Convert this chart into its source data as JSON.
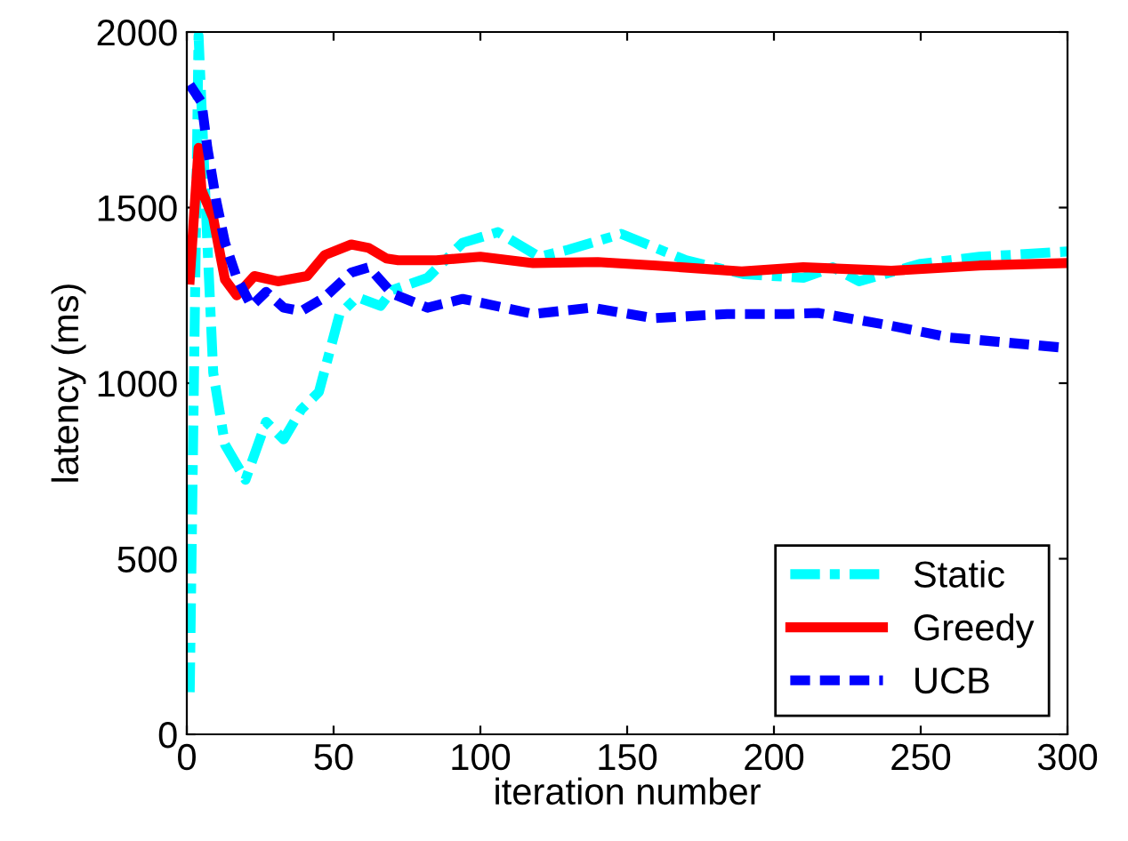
{
  "chart_data": {
    "type": "line",
    "xlabel": "iteration number",
    "ylabel": "latency (ms)",
    "xlim": [
      0,
      300
    ],
    "ylim": [
      0,
      2000
    ],
    "xticks": [
      0,
      50,
      100,
      150,
      200,
      250,
      300
    ],
    "yticks": [
      0,
      500,
      1000,
      1500,
      2000
    ],
    "grid": false,
    "legend": "bottom right",
    "series": [
      {
        "name": "Static",
        "color": "#00ffff",
        "line_style": "dashdot",
        "x": [
          1,
          4,
          7,
          9,
          13,
          20,
          27,
          33,
          39,
          45,
          52,
          58,
          66,
          70,
          82,
          94,
          106,
          120,
          130,
          148,
          170,
          190,
          210,
          220,
          229,
          250,
          270,
          300
        ],
        "values": [
          120,
          1990,
          1400,
          1030,
          825,
          725,
          890,
          840,
          925,
          975,
          1195,
          1245,
          1220,
          1265,
          1300,
          1400,
          1430,
          1360,
          1380,
          1425,
          1350,
          1310,
          1300,
          1330,
          1290,
          1340,
          1360,
          1375
        ]
      },
      {
        "name": "Greedy",
        "color": "#ff0000",
        "line_style": "solid",
        "x": [
          1,
          4,
          5,
          9,
          13,
          17,
          23,
          31,
          41,
          47,
          56,
          62,
          68,
          72,
          85,
          100,
          118,
          140,
          160,
          189,
          210,
          240,
          270,
          300
        ],
        "values": [
          1295,
          1670,
          1550,
          1470,
          1295,
          1250,
          1305,
          1290,
          1305,
          1365,
          1395,
          1385,
          1355,
          1350,
          1350,
          1360,
          1342,
          1345,
          1335,
          1318,
          1330,
          1320,
          1335,
          1342
        ]
      },
      {
        "name": "UCB",
        "color": "#0000ff",
        "line_style": "dashed",
        "x": [
          1,
          5,
          7,
          10,
          13,
          17,
          22,
          27,
          33,
          39,
          47,
          56,
          62,
          70,
          82,
          94,
          118,
          138,
          159,
          184,
          205,
          215,
          239,
          260,
          300
        ],
        "values": [
          1850,
          1800,
          1670,
          1520,
          1400,
          1300,
          1220,
          1260,
          1215,
          1205,
          1245,
          1315,
          1330,
          1255,
          1215,
          1240,
          1197,
          1215,
          1185,
          1197,
          1197,
          1200,
          1165,
          1130,
          1100
        ]
      }
    ]
  }
}
